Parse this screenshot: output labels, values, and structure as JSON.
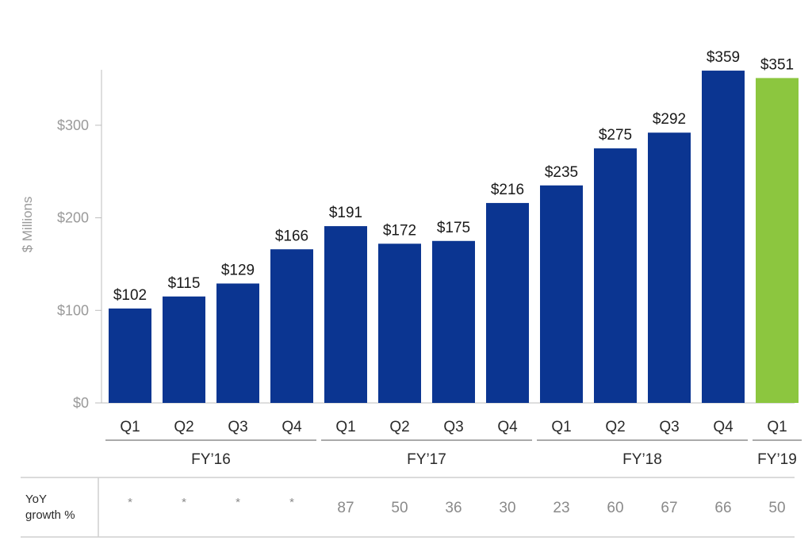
{
  "chart_data": {
    "type": "bar",
    "ylabel": "$ Millions",
    "ylim": [
      0,
      380
    ],
    "yticks": [
      {
        "value": 0,
        "label": "$0"
      },
      {
        "value": 100,
        "label": "$100"
      },
      {
        "value": 200,
        "label": "$200"
      },
      {
        "value": 300,
        "label": "$300"
      }
    ],
    "categories": [
      "Q1",
      "Q2",
      "Q3",
      "Q4",
      "Q1",
      "Q2",
      "Q3",
      "Q4",
      "Q1",
      "Q2",
      "Q3",
      "Q4",
      "Q1"
    ],
    "values": [
      102,
      115,
      129,
      166,
      191,
      172,
      175,
      216,
      235,
      275,
      292,
      359,
      351
    ],
    "data_labels": [
      "$102",
      "$115",
      "$129",
      "$166",
      "$191",
      "$172",
      "$175",
      "$216",
      "$235",
      "$275",
      "$292",
      "$359",
      "$351"
    ],
    "groups": [
      {
        "label": "FY’16",
        "start": 0,
        "end": 3
      },
      {
        "label": "FY’17",
        "start": 4,
        "end": 7
      },
      {
        "label": "FY’18",
        "start": 8,
        "end": 11
      },
      {
        "label": "FY’19",
        "start": 12,
        "end": 12
      }
    ],
    "colors": [
      "#0b3591",
      "#0b3591",
      "#0b3591",
      "#0b3591",
      "#0b3591",
      "#0b3591",
      "#0b3591",
      "#0b3591",
      "#0b3591",
      "#0b3591",
      "#0b3591",
      "#0b3591",
      "#8cc63f"
    ],
    "grid": false,
    "growth_row": {
      "title_line1": "YoY",
      "title_line2": "growth %",
      "values": [
        "*",
        "*",
        "*",
        "*",
        "87",
        "50",
        "36",
        "30",
        "23",
        "60",
        "67",
        "66",
        "50"
      ]
    }
  }
}
